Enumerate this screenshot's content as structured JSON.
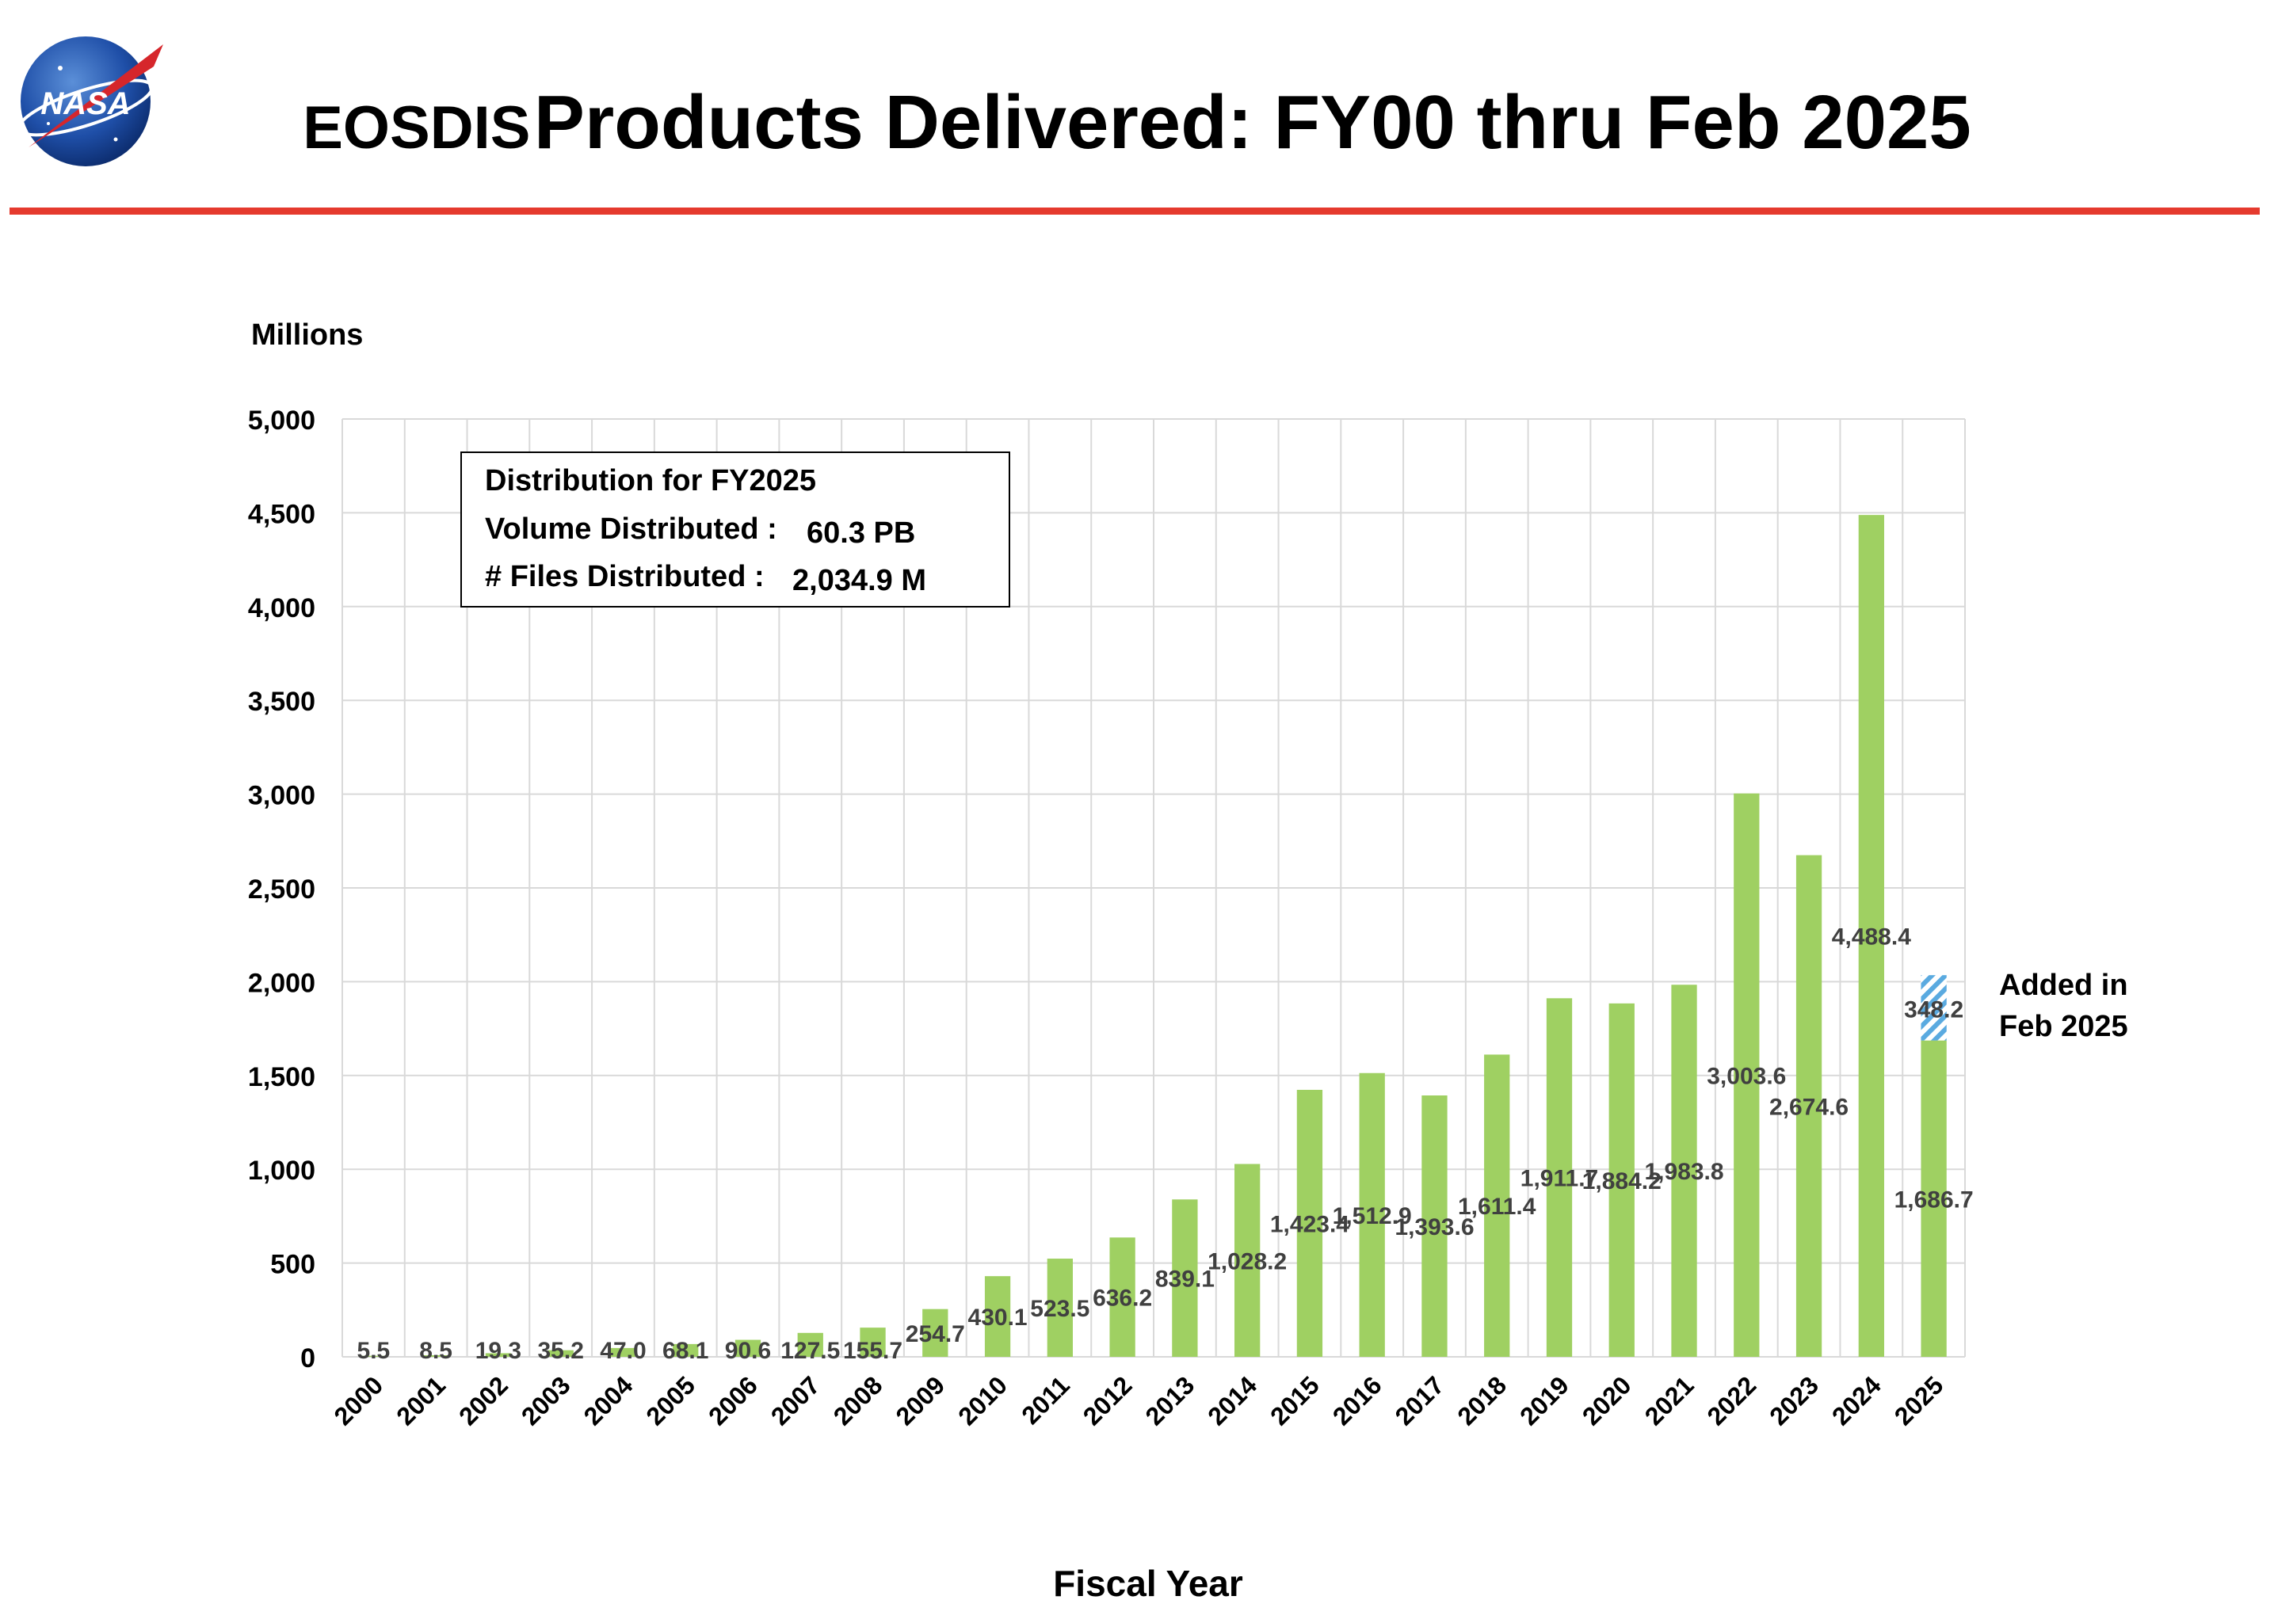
{
  "header": {
    "title_part1": "EOSDIS",
    "title_part2": "Products Delivered: FY00 thru Feb 2025",
    "logo_text": "NASA",
    "rule_color": "#e53a2e"
  },
  "info_box": {
    "line1": "Distribution for FY2025",
    "line2_label": "Volume Distributed :",
    "line2_value": "60.3 PB",
    "line3_label": "# Files Distributed :",
    "line3_value": "2,034.9 M"
  },
  "annotation": {
    "line1": "Added in",
    "line2": "Feb 2025"
  },
  "chart_data": {
    "type": "bar",
    "stacked": true,
    "ylabel": "Millions",
    "xlabel": "Fiscal Year",
    "ylim": [
      0,
      5000
    ],
    "y_ticks": [
      0,
      500,
      1000,
      1500,
      2000,
      2500,
      3000,
      3500,
      4000,
      4500,
      5000
    ],
    "y_tick_labels": [
      "0",
      "500",
      "1,000",
      "1,500",
      "2,000",
      "2,500",
      "3,000",
      "3,500",
      "4,000",
      "4,500",
      "5,000"
    ],
    "grid": true,
    "categories": [
      "2000",
      "2001",
      "2002",
      "2003",
      "2004",
      "2005",
      "2006",
      "2007",
      "2008",
      "2009",
      "2010",
      "2011",
      "2012",
      "2013",
      "2014",
      "2015",
      "2016",
      "2017",
      "2018",
      "2019",
      "2020",
      "2021",
      "2022",
      "2023",
      "2024",
      "2025"
    ],
    "series": [
      {
        "color": "#9fd062",
        "values": [
          5.5,
          8.5,
          19.3,
          35.2,
          47.0,
          68.1,
          90.6,
          127.5,
          155.7,
          254.7,
          430.1,
          523.5,
          636.2,
          839.1,
          1028.2,
          1423.4,
          1512.9,
          1393.6,
          1611.4,
          1911.7,
          1884.2,
          1983.8,
          3003.6,
          2674.6,
          4488.4,
          1686.7
        ],
        "labels": [
          "5.5",
          "8.5",
          "19.3",
          "35.2",
          "47.0",
          "68.1",
          "90.6",
          "127.5",
          "155.7",
          "254.7",
          "430.1",
          "523.5",
          "636.2",
          "839.1",
          "1,028.2",
          "1,423.4",
          "1,512.9",
          "1,393.6",
          "1,611.4",
          "1,911.7",
          "1,884.2",
          "1,983.8",
          "3,003.6",
          "2,674.6",
          "4,488.4",
          "1,686.7"
        ]
      },
      {
        "color": "#5aaae0",
        "pattern": "diagonal-hatch",
        "values": [
          0,
          0,
          0,
          0,
          0,
          0,
          0,
          0,
          0,
          0,
          0,
          0,
          0,
          0,
          0,
          0,
          0,
          0,
          0,
          0,
          0,
          0,
          0,
          0,
          0,
          348.2
        ],
        "labels": [
          "",
          "",
          "",
          "",
          "",
          "",
          "",
          "",
          "",
          "",
          "",
          "",
          "",
          "",
          "",
          "",
          "",
          "",
          "",
          "",
          "",
          "",
          "",
          "",
          "",
          "348.2"
        ]
      }
    ]
  }
}
